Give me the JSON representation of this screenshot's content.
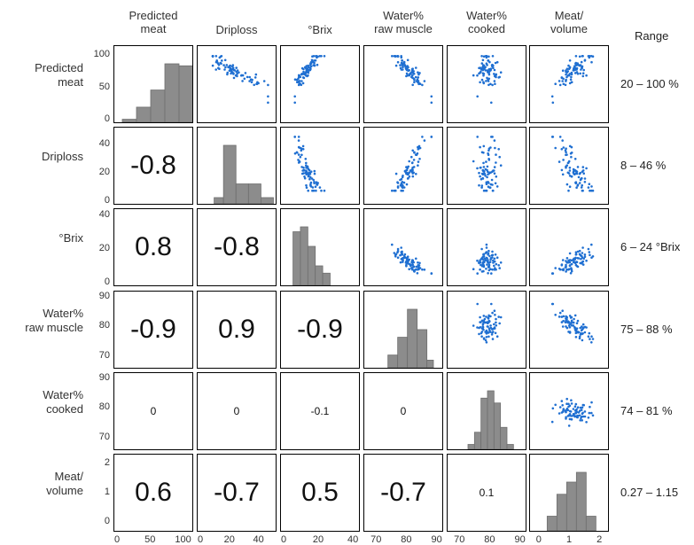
{
  "col_headers": [
    "Predicted\nmeat",
    "Driploss",
    "°Brix",
    "Water%\nraw muscle",
    "Water%\ncooked",
    "Meat/\nvolume"
  ],
  "range_header": "Range",
  "row_headers": [
    "Predicted\nmeat",
    "Driploss",
    "°Brix",
    "Water%\nraw muscle",
    "Water%\ncooked",
    "Meat/\nvolume"
  ],
  "ranges": [
    "20 – 100 %",
    "8 – 46 %",
    "6 – 24 °Brix",
    "75 – 88 %",
    "74 – 81 %",
    "0.27 – 1.15"
  ],
  "colors": {
    "scatter": "#1f6fd1",
    "hist": "#8c8c8c",
    "border": "#000000"
  },
  "chart_data": {
    "type": "scatter-matrix",
    "variables": [
      "Predicted meat",
      "Driploss",
      "°Brix",
      "Water% raw muscle",
      "Water% cooked",
      "Meat/volume"
    ],
    "axes": [
      {
        "lim": [
          0,
          110
        ],
        "ticks": [
          "0",
          "50",
          "100"
        ],
        "tick_values": [
          0,
          50,
          100
        ],
        "xticks": [
          "0",
          "50",
          "100"
        ],
        "xtick_values": [
          0,
          50,
          100
        ]
      },
      {
        "lim": [
          0,
          50
        ],
        "ticks": [
          "0",
          "20",
          "40"
        ],
        "tick_values": [
          0,
          20,
          40
        ],
        "xticks": [
          "0",
          "20",
          "40"
        ],
        "xtick_values": [
          0,
          20,
          40
        ]
      },
      {
        "lim": [
          0,
          42
        ],
        "ticks": [
          "0",
          "20",
          "40"
        ],
        "tick_values": [
          0,
          20,
          40
        ],
        "xticks": [
          "0",
          "20",
          "40"
        ],
        "xtick_values": [
          0,
          20,
          40
        ]
      },
      {
        "lim": [
          67,
          91
        ],
        "ticks": [
          "70",
          "80",
          "90"
        ],
        "tick_values": [
          70,
          80,
          90
        ],
        "xticks": [
          "70",
          "80",
          "90"
        ],
        "xtick_values": [
          70,
          80,
          90
        ]
      },
      {
        "lim": [
          67,
          91
        ],
        "ticks": [
          "70",
          "80",
          "90"
        ],
        "tick_values": [
          70,
          80,
          90
        ],
        "xticks": [
          "70",
          "80",
          "90"
        ],
        "xtick_values": [
          70,
          80,
          90
        ]
      },
      {
        "lim": [
          -0.2,
          2.2
        ],
        "ticks": [
          "0",
          "1",
          "2"
        ],
        "tick_values": [
          0,
          1,
          2
        ],
        "xticks": [
          "0",
          "1",
          "2"
        ],
        "xtick_values": [
          0,
          1,
          2
        ]
      }
    ],
    "correlations": [
      {
        "row": 1,
        "col": 0,
        "label": "-0.8",
        "value": -0.8
      },
      {
        "row": 2,
        "col": 0,
        "label": "0.8",
        "value": 0.8
      },
      {
        "row": 2,
        "col": 1,
        "label": "-0.8",
        "value": -0.8
      },
      {
        "row": 3,
        "col": 0,
        "label": "-0.9",
        "value": -0.9
      },
      {
        "row": 3,
        "col": 1,
        "label": "0.9",
        "value": 0.9
      },
      {
        "row": 3,
        "col": 2,
        "label": "-0.9",
        "value": -0.9
      },
      {
        "row": 4,
        "col": 0,
        "label": "0",
        "value": 0
      },
      {
        "row": 4,
        "col": 1,
        "label": "0",
        "value": 0
      },
      {
        "row": 4,
        "col": 2,
        "label": "-0.1",
        "value": -0.1
      },
      {
        "row": 4,
        "col": 3,
        "label": "0",
        "value": 0
      },
      {
        "row": 5,
        "col": 0,
        "label": "0.6",
        "value": 0.6
      },
      {
        "row": 5,
        "col": 1,
        "label": "-0.7",
        "value": -0.7
      },
      {
        "row": 5,
        "col": 2,
        "label": "0.5",
        "value": 0.5
      },
      {
        "row": 5,
        "col": 3,
        "label": "-0.7",
        "value": -0.7
      },
      {
        "row": 5,
        "col": 4,
        "label": "0.1",
        "value": 0.1
      }
    ],
    "histograms": [
      {
        "var": 0,
        "bins": [
          [
            10,
            30,
            3
          ],
          [
            30,
            50,
            15
          ],
          [
            50,
            70,
            32
          ],
          [
            70,
            90,
            58
          ],
          [
            90,
            110,
            56
          ]
        ]
      },
      {
        "var": 1,
        "bins": [
          [
            10,
            16,
            5
          ],
          [
            16,
            24,
            47
          ],
          [
            24,
            32,
            16
          ],
          [
            32,
            40,
            16
          ],
          [
            40,
            48,
            5
          ]
        ]
      },
      {
        "var": 2,
        "bins": [
          [
            6,
            10,
            22
          ],
          [
            10,
            14,
            24
          ],
          [
            14,
            18,
            16
          ],
          [
            18,
            22,
            8
          ],
          [
            22,
            26,
            5
          ]
        ]
      },
      {
        "var": 3,
        "bins": [
          [
            74,
            77,
            5
          ],
          [
            77,
            80,
            12
          ],
          [
            80,
            83,
            23
          ],
          [
            83,
            86,
            15
          ],
          [
            86,
            88,
            3
          ]
        ]
      },
      {
        "var": 4,
        "bins": [
          [
            73,
            75,
            2
          ],
          [
            75,
            77,
            7
          ],
          [
            77,
            79,
            21
          ],
          [
            79,
            81,
            24
          ],
          [
            81,
            83,
            19
          ],
          [
            83,
            85,
            9
          ],
          [
            85,
            87,
            2
          ]
        ]
      },
      {
        "var": 5,
        "bins": [
          [
            0.3,
            0.6,
            6
          ],
          [
            0.6,
            0.9,
            15
          ],
          [
            0.9,
            1.2,
            20
          ],
          [
            1.2,
            1.5,
            24
          ],
          [
            1.5,
            1.8,
            6
          ]
        ]
      }
    ]
  }
}
